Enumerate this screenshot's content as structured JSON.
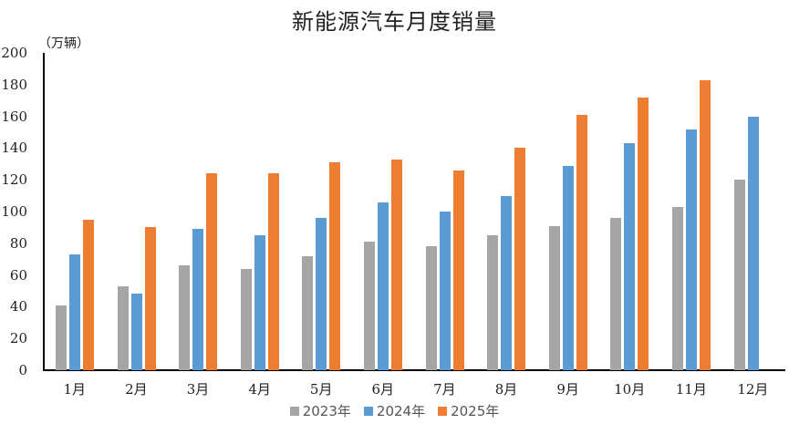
{
  "chart_data": {
    "type": "bar",
    "title": "新能源汽车月度销量",
    "ylabel": "（万辆）",
    "xlabel": "",
    "ylim": [
      0,
      200
    ],
    "yticks": [
      0,
      20,
      40,
      60,
      80,
      100,
      120,
      140,
      160,
      180,
      200
    ],
    "grid": false,
    "legend_position": "bottom",
    "categories": [
      "1月",
      "2月",
      "3月",
      "4月",
      "5月",
      "6月",
      "7月",
      "8月",
      "9月",
      "10月",
      "11月",
      "12月"
    ],
    "series": [
      {
        "name": "2023年",
        "color": "#a5a5a5",
        "values": [
          41,
          53,
          66,
          64,
          72,
          81,
          78,
          85,
          91,
          96,
          103,
          120
        ]
      },
      {
        "name": "2024年",
        "color": "#5b9bd5",
        "values": [
          73,
          48,
          89,
          85,
          96,
          106,
          100,
          110,
          129,
          143,
          152,
          160
        ]
      },
      {
        "name": "2025年",
        "color": "#ed7d31",
        "values": [
          95,
          90,
          124,
          124,
          131,
          133,
          126,
          140,
          161,
          172,
          183,
          null
        ]
      }
    ]
  }
}
